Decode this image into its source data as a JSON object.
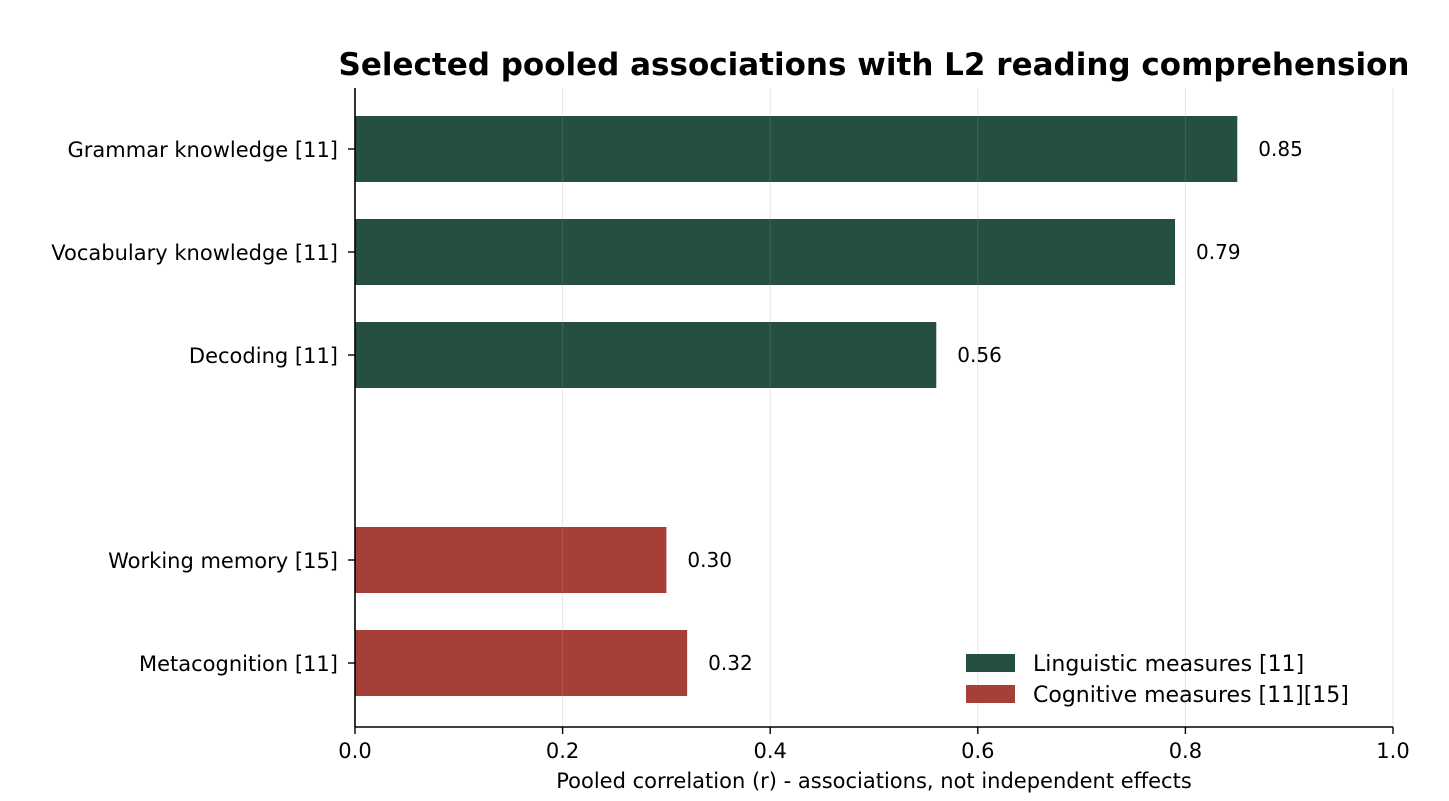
{
  "chart_data": {
    "type": "bar",
    "orientation": "horizontal",
    "title": "Selected pooled associations with L2 reading comprehension",
    "xlabel": "Pooled correlation (r) - associations, not independent effects",
    "ylabel": "",
    "xlim": [
      0,
      1.0
    ],
    "xticks": [
      {
        "value": 0.0,
        "label": "0.0"
      },
      {
        "value": 0.2,
        "label": "0.2"
      },
      {
        "value": 0.4,
        "label": "0.4"
      },
      {
        "value": 0.6,
        "label": "0.6"
      },
      {
        "value": 0.8,
        "label": "0.8"
      },
      {
        "value": 1.0,
        "label": "1.0"
      }
    ],
    "grid": "vertical, light gray",
    "categories": [
      {
        "label": "Grammar knowledge [11]",
        "value": 0.85,
        "value_label": "0.85",
        "group": "linguistic"
      },
      {
        "label": "Vocabulary knowledge [11]",
        "value": 0.79,
        "value_label": "0.79",
        "group": "linguistic"
      },
      {
        "label": "Decoding [11]",
        "value": 0.56,
        "value_label": "0.56",
        "group": "linguistic"
      },
      {
        "label": "Working memory [15]",
        "value": 0.3,
        "value_label": "0.30",
        "group": "cognitive"
      },
      {
        "label": "Metacognition [11]",
        "value": 0.32,
        "value_label": "0.32",
        "group": "cognitive"
      }
    ],
    "legend": {
      "placement": "bottom-right",
      "items": [
        {
          "key": "linguistic",
          "label": "Linguistic measures [11]",
          "color": "#254f42"
        },
        {
          "key": "cognitive",
          "label": "Cognitive measures [11][15]",
          "color": "#a63f37"
        }
      ]
    }
  }
}
